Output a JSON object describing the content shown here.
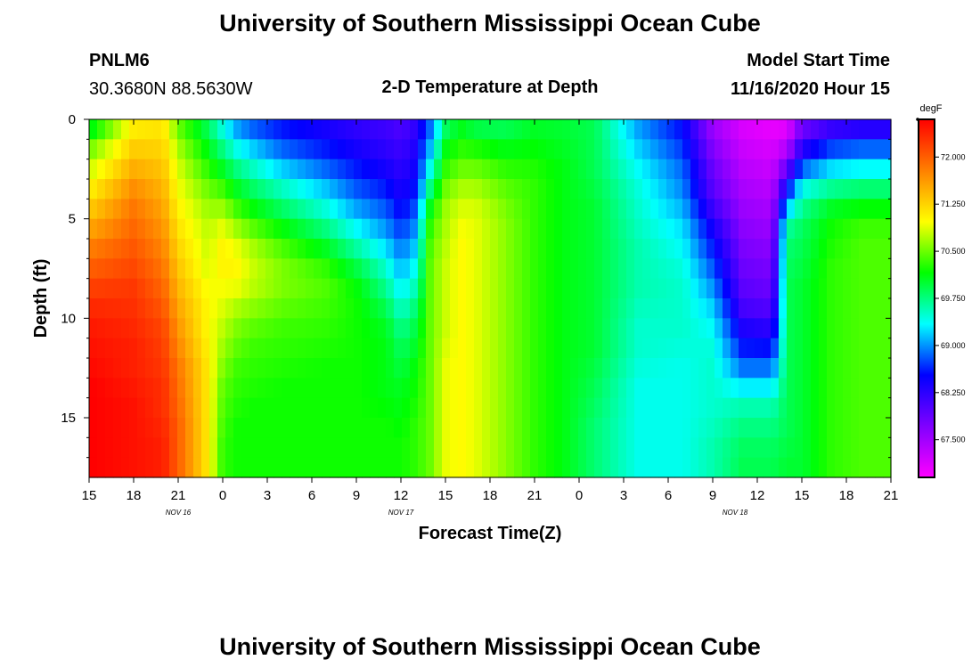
{
  "header": {
    "title_top": "University of Southern Mississippi Ocean Cube",
    "station_id": "PNLM6",
    "coordinates": "30.3680N 88.5630W",
    "model_start_label": "Model Start Time",
    "model_start_value": "11/16/2020 Hour 15"
  },
  "footer": {
    "title_bottom": "University of Southern Mississippi Ocean Cube"
  },
  "chart_data": {
    "type": "heatmap",
    "title": "2-D Temperature at Depth",
    "xlabel": "Forecast Time(Z)",
    "ylabel": "Depth (ft)",
    "x_tick_labels": [
      "15",
      "18",
      "21",
      "0",
      "3",
      "6",
      "9",
      "12",
      "15",
      "18",
      "21",
      "0",
      "3",
      "6",
      "9",
      "12",
      "15",
      "18",
      "21"
    ],
    "date_labels": [
      {
        "text": "NOV 16",
        "at_tick": 2
      },
      {
        "text": "NOV 17",
        "at_tick": 7
      },
      {
        "text": "NOV 18",
        "at_tick": 14.5
      }
    ],
    "y_tick_labels": [
      "0",
      "5",
      "10",
      "15"
    ],
    "y_range_ft": [
      0,
      18
    ],
    "x_range_hours": [
      0,
      54
    ],
    "colorbar": {
      "unit": "degF",
      "range": [
        66.9,
        72.6
      ],
      "tick_labels": [
        "72.000",
        "71.250",
        "70.500",
        "69.750",
        "69.000",
        "68.250",
        "67.500"
      ],
      "stops": [
        "#ff00ff",
        "#8000ff",
        "#0000ff",
        "#00ffff",
        "#00ff00",
        "#ffff00",
        "#ff8000",
        "#ff0000"
      ]
    },
    "profile_times_h": [
      0,
      3,
      5,
      6,
      8,
      9,
      10,
      11,
      13,
      16,
      18,
      20,
      21,
      22,
      23,
      24,
      25,
      26,
      28,
      30,
      32,
      34,
      37,
      40,
      42,
      44,
      46,
      47,
      48,
      50,
      52,
      54
    ],
    "profile_depths_ft": [
      0,
      1,
      2,
      3,
      4,
      5,
      6,
      7,
      8,
      9,
      10,
      11,
      12,
      13,
      14,
      15,
      16,
      17,
      18
    ],
    "temperature_degF": [
      [
        69.8,
        70.3,
        70.7,
        70.9,
        71.2,
        71.4,
        71.7,
        71.9,
        72.1,
        72.3,
        72.4,
        72.5,
        72.5,
        72.6,
        72.6,
        72.6,
        72.6,
        72.6,
        72.6
      ],
      [
        71.0,
        71.2,
        71.4,
        71.6,
        71.8,
        71.9,
        72.0,
        72.1,
        72.2,
        72.3,
        72.3,
        72.4,
        72.4,
        72.4,
        72.5,
        72.5,
        72.5,
        72.5,
        72.5
      ],
      [
        71.1,
        71.2,
        71.3,
        71.4,
        71.5,
        71.6,
        71.7,
        71.8,
        71.9,
        72.0,
        72.1,
        72.2,
        72.2,
        72.3,
        72.3,
        72.3,
        72.4,
        72.4,
        72.4
      ],
      [
        70.4,
        70.6,
        70.8,
        70.9,
        71.0,
        71.1,
        71.2,
        71.3,
        71.4,
        71.5,
        71.6,
        71.7,
        71.8,
        71.9,
        71.9,
        72.0,
        72.0,
        72.0,
        72.0
      ],
      [
        69.8,
        70.0,
        70.2,
        70.4,
        70.6,
        70.7,
        70.8,
        70.8,
        70.9,
        71.0,
        71.0,
        71.0,
        71.1,
        71.1,
        71.1,
        71.1,
        71.1,
        71.1,
        71.1
      ],
      [
        69.3,
        69.6,
        69.9,
        70.2,
        70.5,
        70.8,
        71.0,
        71.1,
        71.0,
        70.9,
        70.8,
        70.7,
        70.6,
        70.5,
        70.4,
        70.4,
        70.3,
        70.3,
        70.3
      ],
      [
        68.9,
        69.2,
        69.6,
        69.9,
        70.2,
        70.5,
        70.8,
        71.0,
        71.0,
        70.8,
        70.6,
        70.5,
        70.4,
        70.3,
        70.3,
        70.2,
        70.2,
        70.2,
        70.2
      ],
      [
        68.7,
        69.0,
        69.4,
        69.7,
        70.0,
        70.3,
        70.6,
        70.8,
        70.8,
        70.7,
        70.5,
        70.4,
        70.3,
        70.3,
        70.2,
        70.2,
        70.2,
        70.2,
        70.2
      ],
      [
        68.5,
        68.7,
        69.0,
        69.4,
        69.7,
        70.0,
        70.3,
        70.5,
        70.6,
        70.5,
        70.4,
        70.3,
        70.3,
        70.2,
        70.2,
        70.2,
        70.2,
        70.2,
        70.2
      ],
      [
        68.3,
        68.5,
        68.7,
        69.0,
        69.3,
        69.6,
        69.9,
        70.2,
        70.4,
        70.4,
        70.3,
        70.3,
        70.2,
        70.2,
        70.2,
        70.2,
        70.2,
        70.2,
        70.2
      ],
      [
        68.2,
        68.3,
        68.5,
        68.7,
        68.9,
        69.2,
        69.5,
        69.8,
        70.1,
        70.2,
        70.2,
        70.2,
        70.2,
        70.2,
        70.2,
        70.2,
        70.2,
        70.2,
        70.2
      ],
      [
        68.1,
        68.2,
        68.3,
        68.5,
        68.7,
        68.9,
        69.1,
        69.4,
        69.6,
        69.8,
        70.0,
        70.1,
        70.1,
        70.1,
        70.1,
        70.2,
        70.2,
        70.2,
        70.2
      ],
      [
        68.0,
        68.1,
        68.2,
        68.3,
        68.4,
        68.6,
        68.8,
        69.0,
        69.2,
        69.4,
        69.6,
        69.8,
        69.9,
        70.0,
        70.1,
        70.1,
        70.2,
        70.2,
        70.2
      ],
      [
        68.2,
        68.3,
        68.4,
        68.5,
        68.7,
        68.9,
        69.1,
        69.3,
        69.5,
        69.7,
        69.9,
        70.0,
        70.1,
        70.2,
        70.2,
        70.3,
        70.3,
        70.3,
        70.3
      ],
      [
        68.8,
        69.0,
        69.3,
        69.6,
        70.0,
        70.3,
        70.4,
        70.5,
        70.5,
        70.5,
        70.5,
        70.5,
        70.5,
        70.5,
        70.5,
        70.5,
        70.5,
        70.5,
        70.5
      ],
      [
        69.7,
        70.0,
        70.2,
        70.4,
        70.6,
        70.7,
        70.7,
        70.8,
        70.8,
        70.8,
        70.8,
        70.8,
        70.9,
        70.9,
        70.9,
        70.9,
        70.9,
        70.9,
        70.9
      ],
      [
        70.0,
        70.2,
        70.4,
        70.6,
        70.8,
        70.9,
        71.0,
        71.0,
        71.0,
        71.0,
        71.0,
        71.0,
        71.0,
        71.0,
        71.0,
        71.0,
        71.0,
        71.0,
        71.0
      ],
      [
        69.8,
        70.1,
        70.4,
        70.6,
        70.8,
        70.9,
        70.9,
        70.9,
        70.9,
        70.9,
        70.9,
        70.9,
        70.9,
        70.9,
        70.9,
        70.9,
        70.9,
        70.9,
        70.9
      ],
      [
        69.8,
        70.0,
        70.2,
        70.4,
        70.5,
        70.6,
        70.6,
        70.6,
        70.6,
        70.6,
        70.6,
        70.6,
        70.6,
        70.6,
        70.6,
        70.6,
        70.6,
        70.6,
        70.6
      ],
      [
        70.0,
        70.1,
        70.2,
        70.3,
        70.3,
        70.3,
        70.3,
        70.3,
        70.3,
        70.3,
        70.3,
        70.3,
        70.3,
        70.3,
        70.3,
        70.3,
        70.3,
        70.3,
        70.3
      ],
      [
        70.0,
        70.0,
        70.1,
        70.1,
        70.1,
        70.1,
        70.1,
        70.1,
        70.1,
        70.1,
        70.1,
        70.1,
        70.1,
        70.1,
        70.1,
        70.1,
        70.1,
        70.1,
        70.1
      ],
      [
        69.9,
        69.9,
        69.9,
        69.9,
        70.0,
        70.0,
        70.0,
        70.0,
        70.0,
        70.0,
        70.0,
        70.0,
        70.0,
        69.9,
        69.9,
        69.8,
        69.8,
        69.8,
        69.8
      ],
      [
        69.0,
        69.1,
        69.3,
        69.4,
        69.5,
        69.5,
        69.6,
        69.6,
        69.6,
        69.6,
        69.5,
        69.5,
        69.5,
        69.4,
        69.4,
        69.4,
        69.4,
        69.4,
        69.4
      ],
      [
        68.5,
        68.6,
        68.8,
        68.9,
        69.0,
        69.2,
        69.3,
        69.4,
        69.5,
        69.5,
        69.5,
        69.5,
        69.4,
        69.4,
        69.4,
        69.4,
        69.4,
        69.4,
        69.4
      ],
      [
        67.5,
        67.6,
        67.8,
        67.9,
        68.0,
        68.3,
        68.5,
        68.7,
        68.9,
        69.1,
        69.3,
        69.4,
        69.5,
        69.5,
        69.5,
        69.5,
        69.6,
        69.6,
        69.6
      ],
      [
        67.1,
        67.2,
        67.3,
        67.4,
        67.5,
        67.6,
        67.7,
        67.8,
        67.9,
        68.0,
        68.2,
        68.5,
        68.7,
        69.1,
        69.5,
        69.7,
        69.8,
        69.9,
        69.9
      ],
      [
        67.0,
        67.1,
        67.2,
        67.3,
        67.4,
        67.5,
        67.6,
        67.7,
        67.8,
        67.9,
        68.1,
        68.4,
        68.7,
        69.1,
        69.5,
        69.7,
        69.8,
        69.9,
        69.9
      ],
      [
        67.0,
        67.2,
        67.6,
        68.2,
        68.8,
        69.5,
        69.8,
        69.8,
        69.9,
        69.9,
        69.9,
        69.9,
        69.9,
        69.9,
        69.9,
        69.9,
        69.9,
        70.0,
        70.0
      ],
      [
        67.6,
        68.1,
        68.5,
        69.2,
        69.6,
        69.8,
        69.9,
        69.9,
        70.0,
        70.0,
        70.0,
        70.0,
        70.0,
        70.0,
        70.0,
        70.0,
        70.0,
        70.0,
        70.0
      ],
      [
        67.9,
        68.5,
        69.0,
        69.5,
        69.9,
        70.2,
        70.2,
        70.3,
        70.3,
        70.3,
        70.3,
        70.3,
        70.3,
        70.3,
        70.3,
        70.3,
        70.3,
        70.3,
        70.3
      ],
      [
        68.0,
        68.6,
        69.1,
        69.6,
        70.0,
        70.3,
        70.4,
        70.4,
        70.4,
        70.4,
        70.4,
        70.4,
        70.4,
        70.4,
        70.4,
        70.4,
        70.4,
        70.4,
        70.4
      ],
      [
        68.0,
        68.6,
        69.1,
        69.6,
        70.0,
        70.3,
        70.4,
        70.4,
        70.4,
        70.4,
        70.4,
        70.4,
        70.4,
        70.4,
        70.4,
        70.4,
        70.4,
        70.4,
        70.4
      ]
    ]
  }
}
